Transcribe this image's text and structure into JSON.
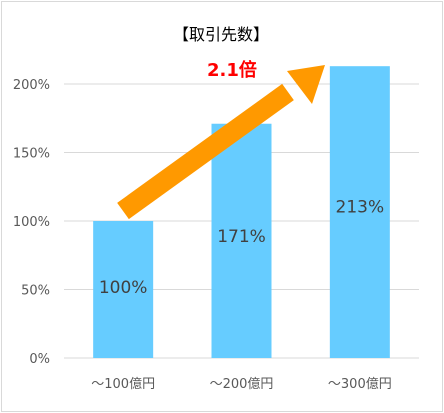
{
  "chart_data": {
    "type": "bar",
    "title": "【取引先数】",
    "categories": [
      "～100億円",
      "～200億円",
      "～300億円"
    ],
    "values": [
      100,
      171,
      213
    ],
    "data_labels": [
      "100%",
      "171%",
      "213%"
    ],
    "ylim": [
      0,
      200
    ],
    "yticks": [
      0,
      50,
      100,
      150,
      200
    ],
    "ytick_labels": [
      "0%",
      "50%",
      "100%",
      "150%",
      "200%"
    ],
    "grid": true,
    "annotation": "2.1倍",
    "colors": {
      "bar": "#66ccff",
      "arrow": "#ff9900",
      "annotation": "#ff0000",
      "grid": "#d9d9d9"
    }
  }
}
